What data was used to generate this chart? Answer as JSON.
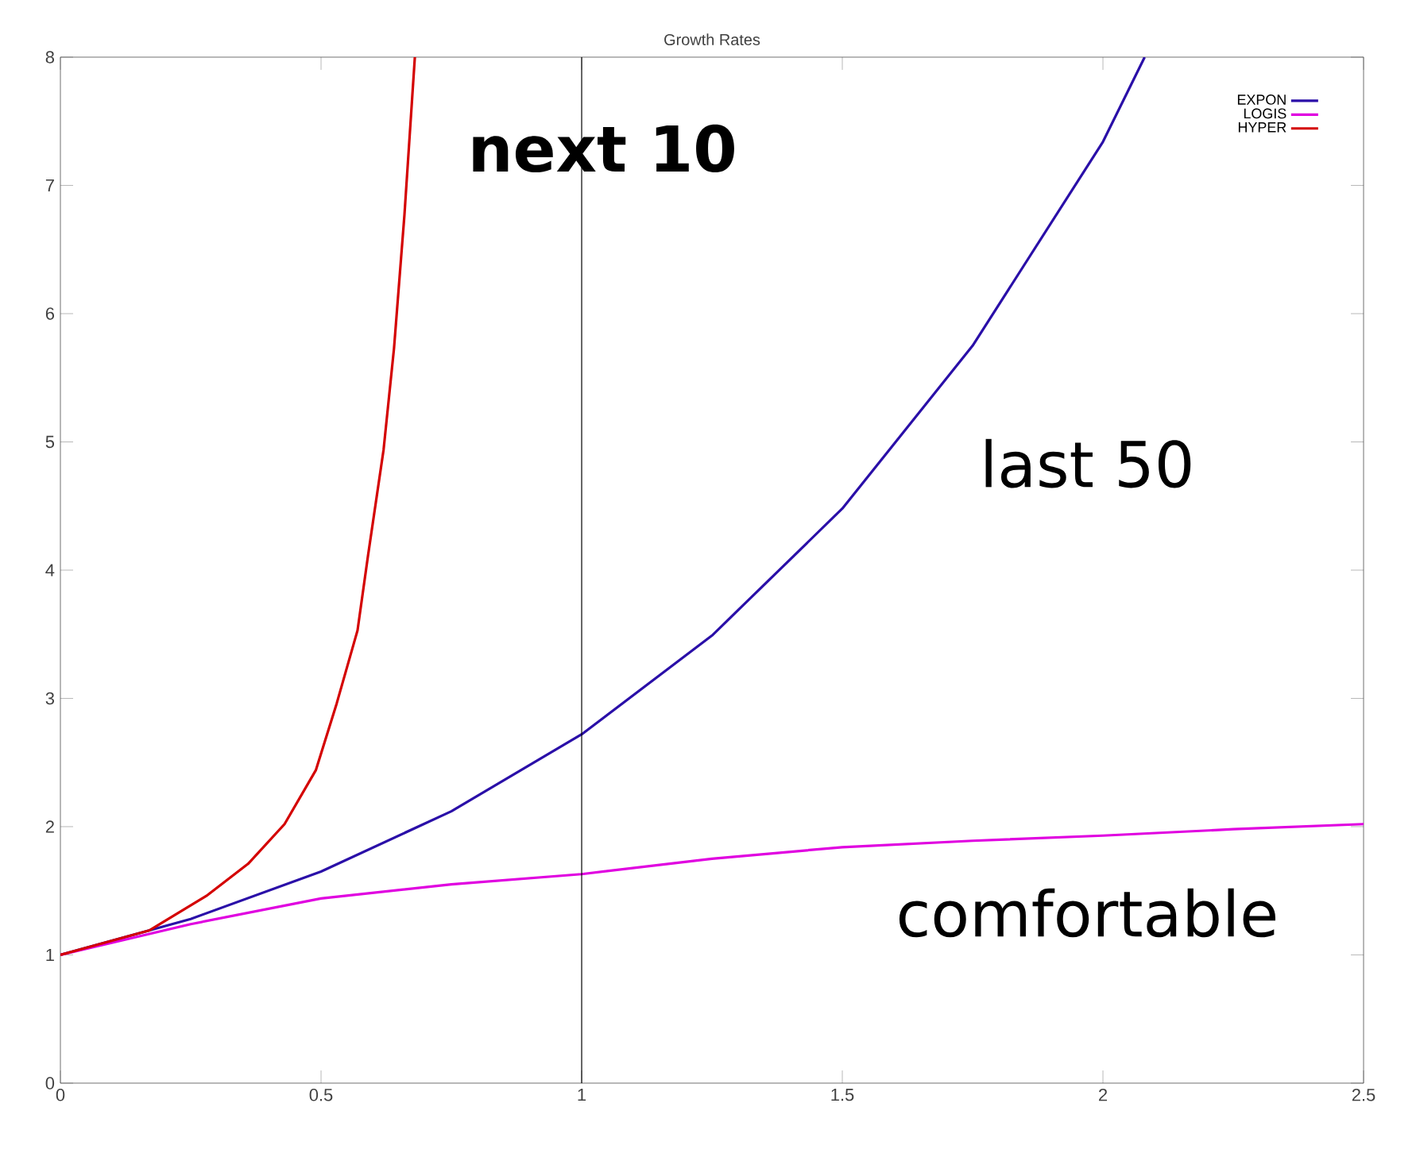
{
  "chart_data": {
    "type": "line",
    "title": "Growth Rates",
    "xlim": [
      0,
      2.5
    ],
    "ylim": [
      0,
      8
    ],
    "xticks": [
      0,
      0.5,
      1,
      1.5,
      2,
      2.5
    ],
    "yticks": [
      0,
      1,
      2,
      3,
      4,
      5,
      6,
      7,
      8
    ],
    "grid": false,
    "legend": "top right",
    "marker": "none",
    "line_style": "solid",
    "ref_lines": [
      {
        "axis": "x",
        "value": 1,
        "color": "#000000"
      }
    ],
    "annotations": [
      "next 10",
      "last 50",
      "comfortable"
    ],
    "series": [
      {
        "name": "EXPON",
        "color": "#2a0fa8",
        "x": [
          0,
          0.25,
          0.5,
          0.75,
          1,
          1.25,
          1.5,
          1.75,
          2,
          2.08
        ],
        "values": [
          1,
          1.28,
          1.65,
          2.12,
          2.72,
          3.49,
          4.48,
          5.75,
          7.34,
          8
        ]
      },
      {
        "name": "LOGIS",
        "color": "#e000e0",
        "x": [
          0,
          0.25,
          0.5,
          0.75,
          1,
          1.25,
          1.5,
          1.75,
          2,
          2.25,
          2.5
        ],
        "values": [
          1,
          1.24,
          1.44,
          1.55,
          1.63,
          1.75,
          1.84,
          1.89,
          1.93,
          1.98,
          2.02
        ]
      },
      {
        "name": "HYPER",
        "color": "#d40000",
        "x": [
          0,
          0.17,
          0.28,
          0.36,
          0.43,
          0.49,
          0.53,
          0.57,
          0.59,
          0.62,
          0.64,
          0.66,
          0.68
        ],
        "values": [
          1,
          1.19,
          1.46,
          1.71,
          2.02,
          2.44,
          2.96,
          3.53,
          4.11,
          4.94,
          5.73,
          6.77,
          8.0
        ]
      }
    ]
  }
}
